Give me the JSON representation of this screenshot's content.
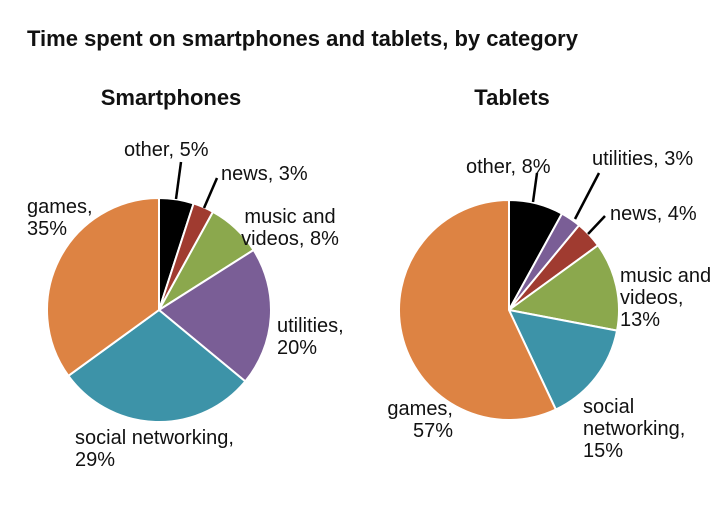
{
  "title": "Time spent on smartphones and tablets, by category",
  "palette": {
    "games": "#DD8343",
    "social_networking": "#3D93A8",
    "utilities": "#7A5E96",
    "music_and_videos": "#8BA84D",
    "news": "#A03B30",
    "other": "#000000",
    "slice_border": "#FFFFFF",
    "text": "#111111"
  },
  "chart_data": [
    {
      "type": "pie",
      "title": "Smartphones",
      "start_angle_deg": 0,
      "direction": "clockwise",
      "categories": [
        "other",
        "news",
        "music and videos",
        "utilities",
        "social networking",
        "games"
      ],
      "values": [
        5,
        3,
        8,
        20,
        29,
        35
      ],
      "colors": [
        "#000000",
        "#A03B30",
        "#8BA84D",
        "#7A5E96",
        "#3D93A8",
        "#DD8343"
      ],
      "labels": {
        "games": "games,\n35%",
        "other": "other, 5%",
        "news": "news, 3%",
        "music_and_videos": "music and\nvideos, 8%",
        "utilities": "utilities,\n20%",
        "social_networking": "social networking,\n29%"
      }
    },
    {
      "type": "pie",
      "title": "Tablets",
      "start_angle_deg": 0,
      "direction": "clockwise",
      "categories": [
        "other",
        "utilities",
        "news",
        "music and videos",
        "social networking",
        "games"
      ],
      "values": [
        8,
        3,
        4,
        13,
        15,
        57
      ],
      "colors": [
        "#000000",
        "#7A5E96",
        "#A03B30",
        "#8BA84D",
        "#3D93A8",
        "#DD8343"
      ],
      "labels": {
        "other": "other, 8%",
        "utilities": "utilities, 3%",
        "news": "news, 4%",
        "music_and_videos": "music and\nvideos,\n13%",
        "social_networking": "social\nnetworking,\n15%",
        "games": "games,\n57%"
      }
    }
  ]
}
